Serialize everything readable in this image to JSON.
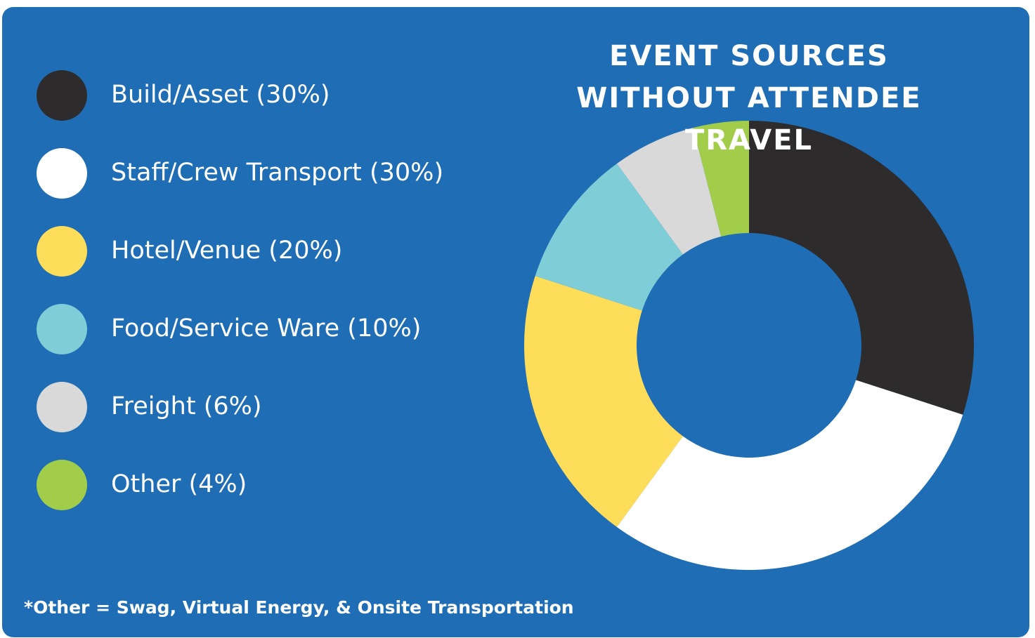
{
  "chart_data": {
    "type": "donut",
    "title": "EVENT SOURCES WITHOUT ATTENDEE TRAVEL",
    "categories": [
      "Build/Asset (30%)",
      "Staff/Crew Transport (30%)",
      "Hotel/Venue (20%)",
      "Food/Service Ware (10%)",
      "Freight (6%)",
      "Other (4%)"
    ],
    "values": [
      30,
      30,
      20,
      10,
      6,
      4
    ],
    "colors": [
      "#2d2b2c",
      "#ffffff",
      "#fedd5a",
      "#7ecdd7",
      "#d9d9d9",
      "#a1cd4a"
    ],
    "annotation": "*Other = Swag, Virtual Energy, & Onsite Transportation"
  }
}
